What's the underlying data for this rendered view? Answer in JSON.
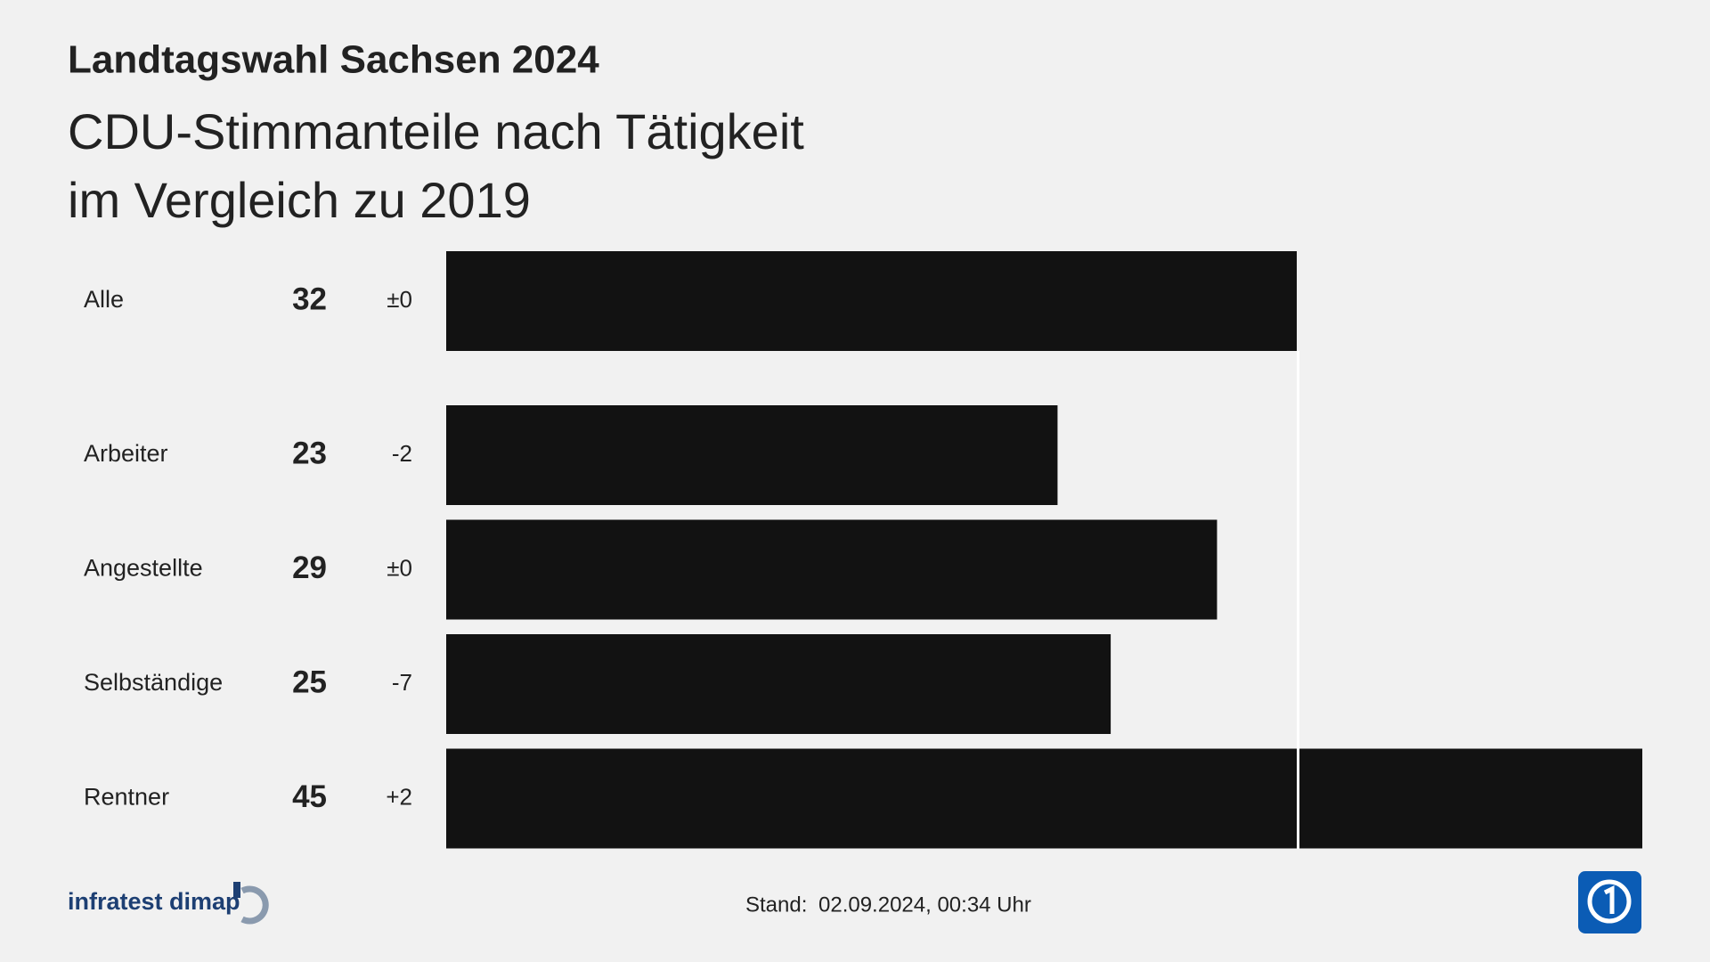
{
  "chart_data": {
    "type": "bar",
    "title": "Landtagswahl Sachsen 2024",
    "subtitle": [
      "CDU-Stimmanteile nach Tätigkeit",
      "im Vergleich zu 2019"
    ],
    "categories": [
      "Alle",
      "Arbeiter",
      "Angestellte",
      "Selbständige",
      "Rentner"
    ],
    "values": [
      32,
      23,
      29,
      25,
      45
    ],
    "changes": [
      "±0",
      "-2",
      "±0",
      "-7",
      "+2"
    ],
    "color": "#121212",
    "reference_line_color": "#ffffff",
    "source": "infratest dimap",
    "stand_label": "Stand:",
    "stand_date": "02.09.2024, 00:34 Uhr"
  }
}
